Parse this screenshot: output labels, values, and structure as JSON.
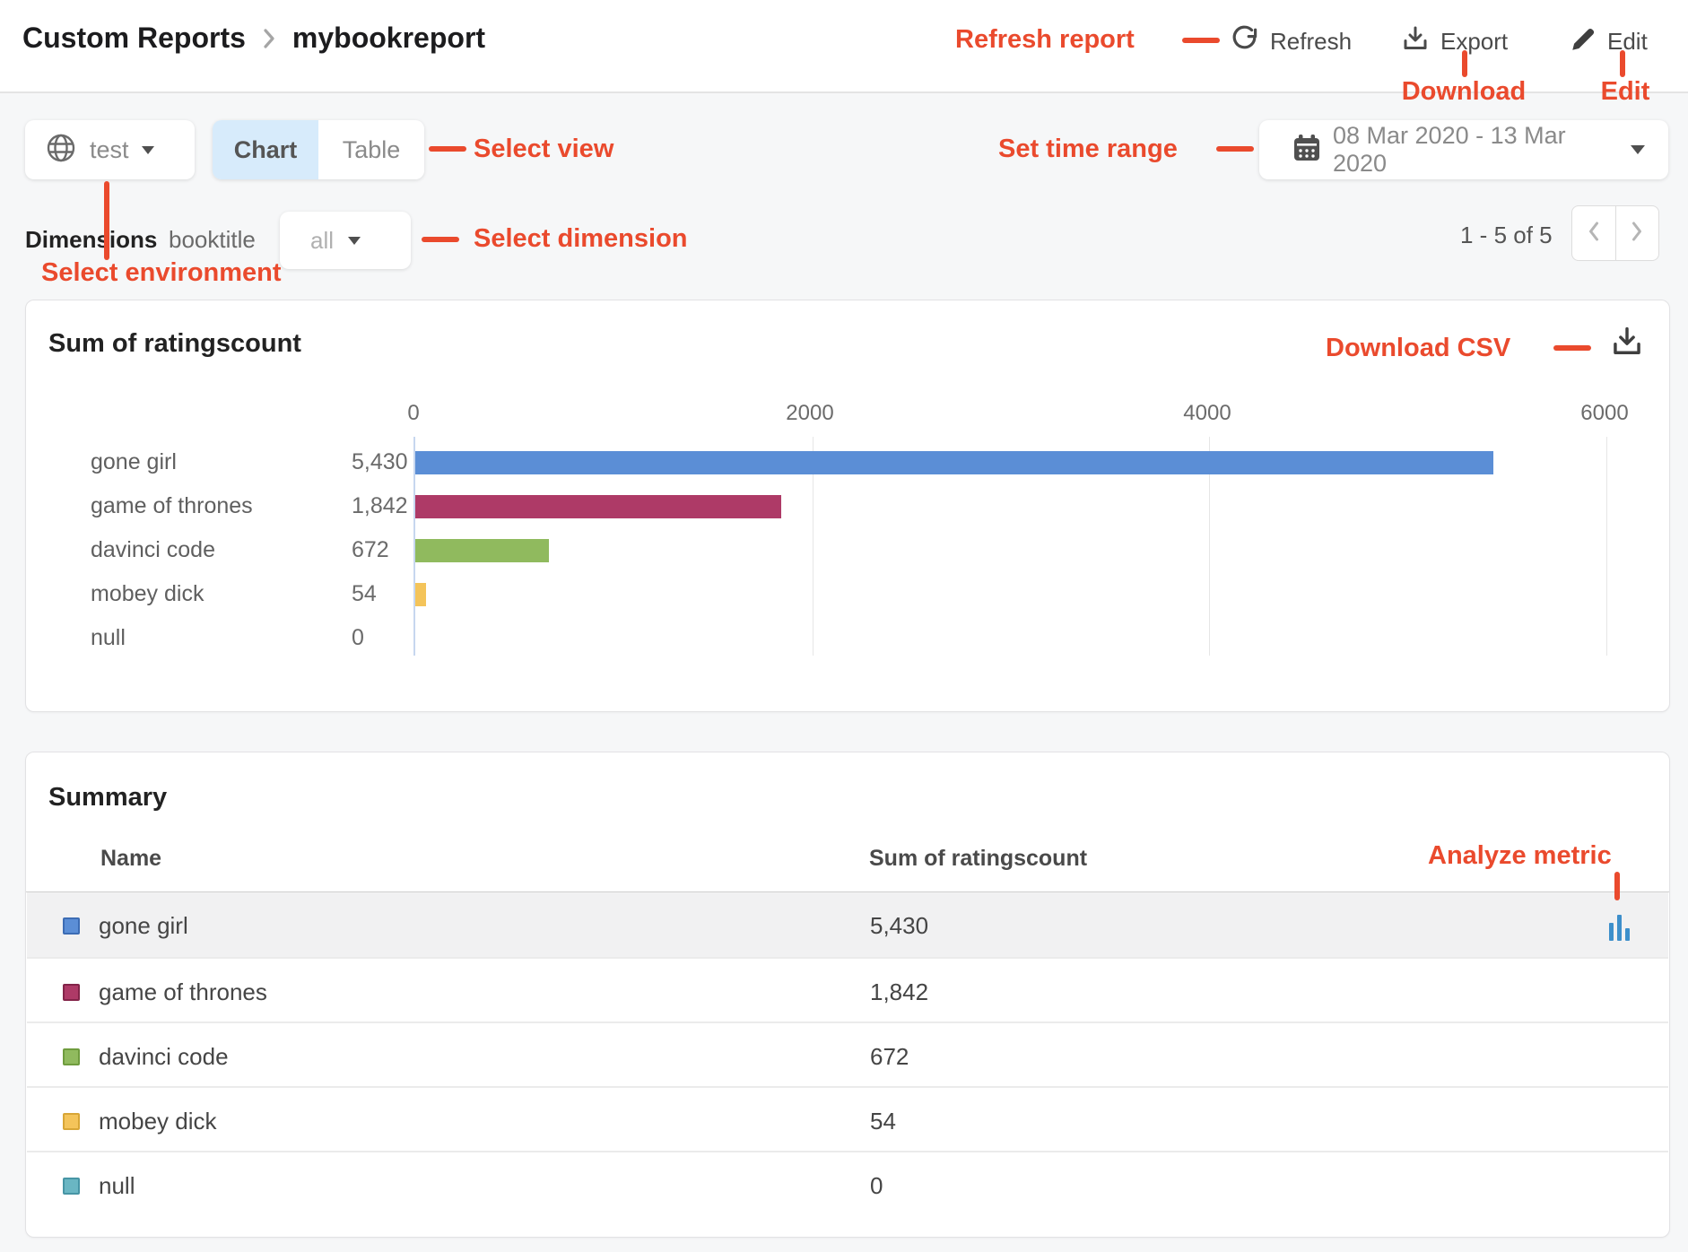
{
  "header": {
    "breadcrumb": {
      "root": "Custom Reports",
      "current": "mybookreport"
    },
    "refresh_label": "Refresh",
    "export_label": "Export",
    "edit_label": "Edit"
  },
  "toolbar": {
    "environment": {
      "value": "test"
    },
    "view_tabs": {
      "chart": "Chart",
      "table": "Table",
      "active": "Chart"
    },
    "date_range": {
      "value": "08 Mar 2020 - 13 Mar 2020"
    }
  },
  "dimensions_bar": {
    "label": "Dimensions",
    "dimension": "booktitle",
    "selected": "all"
  },
  "pagination": {
    "range_text": "1 - 5 of 5"
  },
  "chart_card": {
    "title": "Sum of ratingscount"
  },
  "chart_data": {
    "type": "bar",
    "orientation": "horizontal",
    "title": "Sum of ratingscount",
    "categories": [
      "gone girl",
      "game of thrones",
      "davinci code",
      "mobey dick",
      "null"
    ],
    "values": [
      5430,
      1842,
      672,
      54,
      0
    ],
    "value_labels": [
      "5,430",
      "1,842",
      "672",
      "54",
      "0"
    ],
    "bar_colors": [
      "#5b8ed6",
      "#ae3a67",
      "#90ba5e",
      "#f4c45a",
      "#6ab6c3"
    ],
    "xlim": [
      0,
      6000
    ],
    "x_ticks": [
      "0",
      "2000",
      "4000",
      "6000"
    ],
    "grid": true,
    "legend": false
  },
  "summary_table": {
    "title": "Summary",
    "columns": [
      "Name",
      "Sum of ratingscount"
    ],
    "rows": [
      {
        "name": "gone girl",
        "value": "5,430",
        "swatch": "#5b8ed6",
        "swatch_border": "#3c6cb4",
        "highlighted": true
      },
      {
        "name": "game of thrones",
        "value": "1,842",
        "swatch": "#ae3a67",
        "swatch_border": "#832449",
        "highlighted": false
      },
      {
        "name": "davinci code",
        "value": "672",
        "swatch": "#90ba5e",
        "swatch_border": "#6f9c3e",
        "highlighted": false
      },
      {
        "name": "mobey dick",
        "value": "54",
        "swatch": "#f4c45a",
        "swatch_border": "#d8a636",
        "highlighted": false
      },
      {
        "name": "null",
        "value": "0",
        "swatch": "#6ab6c3",
        "swatch_border": "#4795a5",
        "highlighted": false
      }
    ]
  },
  "annotations": {
    "color": "#ea4a2d",
    "refresh_report": "Refresh report",
    "download": "Download",
    "edit": "Edit",
    "select_view": "Select view",
    "set_time_range": "Set time range",
    "select_dimension": "Select dimension",
    "select_environment": "Select environment",
    "download_csv": "Download CSV",
    "analyze_metric": "Analyze metric"
  },
  "icons": {
    "refresh": "circular-arrow",
    "export": "download-tray",
    "edit": "pencil",
    "environment": "globe",
    "date": "calendar",
    "download_csv": "download-tray",
    "analyze_metric": "bar-chart",
    "prev": "chevron-left",
    "next": "chevron-right",
    "breadcrumb_separator": "chevron-right",
    "dropdown": "caret-down"
  }
}
